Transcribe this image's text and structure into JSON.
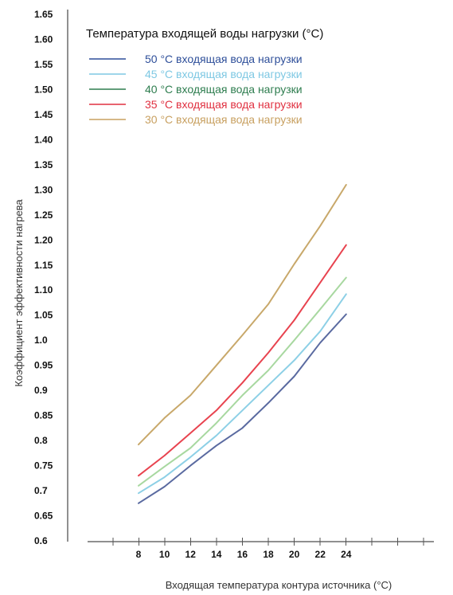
{
  "chart_data": {
    "type": "line",
    "title": "",
    "xlabel": "Входящая температура контура источника (°C)",
    "ylabel": "Коэффициент эффективности нагрева",
    "legend_title": "Температура входящей воды нагрузки (°C)",
    "legend_placement": "top-left",
    "grid": false,
    "x": [
      8,
      10,
      12,
      14,
      16,
      18,
      20,
      22,
      24
    ],
    "x_tick_labels": [
      "8",
      "10",
      "12",
      "14",
      "16",
      "18",
      "20",
      "22",
      "24"
    ],
    "y_tick_labels": [
      "1.65",
      "1.60",
      "1.55",
      "1.50",
      "1.45",
      "1.40",
      "1.35",
      "1.30",
      "1.25",
      "1.20",
      "1.15",
      "1.10",
      "1.05",
      "1.0",
      "0.95",
      "0.9",
      "0.85",
      "0.8",
      "0.75",
      "0.7",
      "0.65",
      "0.6"
    ],
    "series": [
      {
        "name": "50 °C входящая вода нагрузки",
        "color": "#5a6aa0",
        "legend_color": "#2e4f9a",
        "values": [
          0.675,
          0.708,
          0.75,
          0.79,
          0.825,
          0.875,
          0.928,
          0.995,
          1.052
        ]
      },
      {
        "name": "45 °C входящая вода нагрузки",
        "color": "#8dd0e6",
        "legend_color": "#7ec8e3",
        "values": [
          0.695,
          0.727,
          0.767,
          0.81,
          0.86,
          0.91,
          0.96,
          1.018,
          1.092
        ]
      },
      {
        "name": "40 °C входящая вода нагрузки",
        "color": "#a8d8a0",
        "legend_color": "#2e7d4f",
        "values": [
          0.71,
          0.748,
          0.785,
          0.835,
          0.89,
          0.94,
          1.0,
          1.062,
          1.125
        ]
      },
      {
        "name": "35 °C входящая вода нагрузки",
        "color": "#e8434f",
        "legend_color": "#e03040",
        "values": [
          0.73,
          0.77,
          0.815,
          0.86,
          0.915,
          0.975,
          1.04,
          1.115,
          1.19
        ]
      },
      {
        "name": "30 °C входящая вода нагрузки",
        "color": "#c8a86a",
        "legend_color": "#c8a060",
        "values": [
          0.792,
          0.845,
          0.89,
          0.95,
          1.01,
          1.072,
          1.152,
          1.228,
          1.31
        ]
      }
    ]
  }
}
